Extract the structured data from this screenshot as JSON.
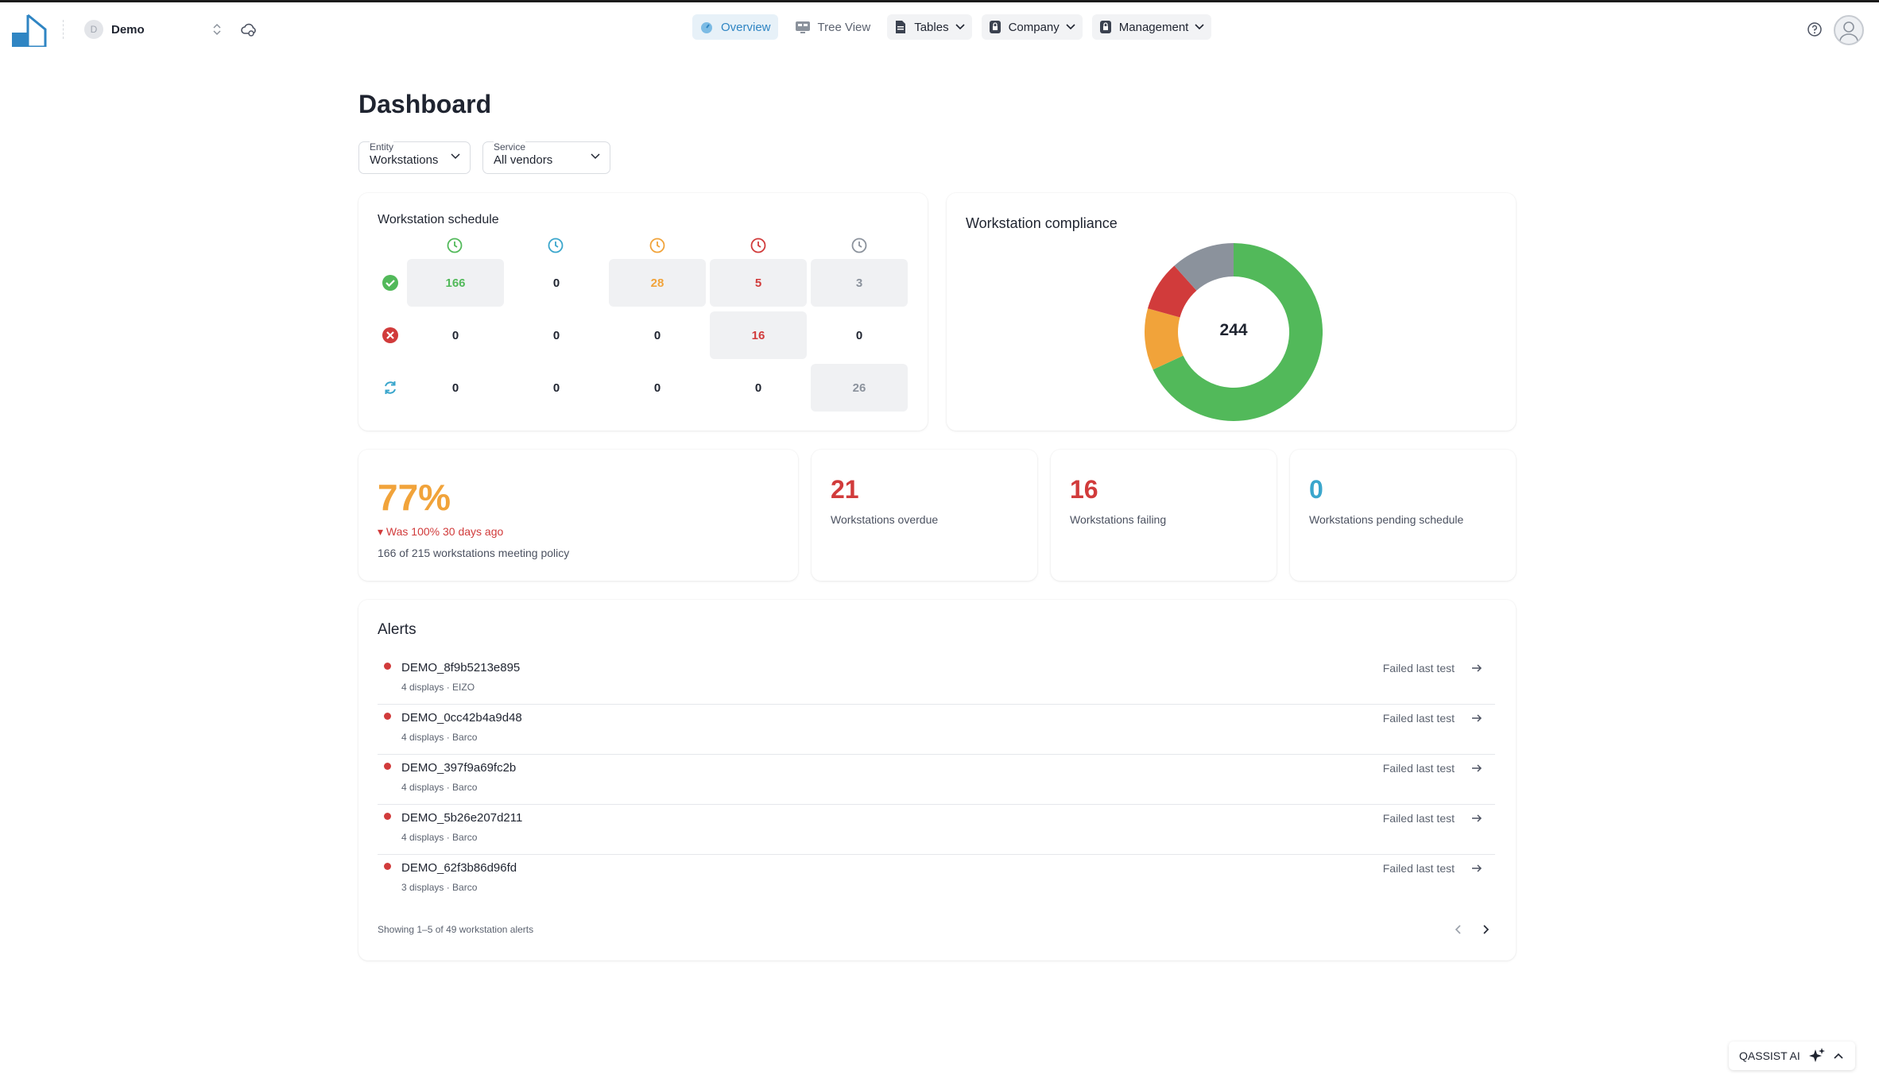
{
  "header": {
    "org_initial": "D",
    "org_name": "Demo",
    "nav": [
      {
        "label": "Overview"
      },
      {
        "label": "Tree View"
      },
      {
        "label": "Tables"
      },
      {
        "label": "Company"
      },
      {
        "label": "Management"
      }
    ]
  },
  "page": {
    "title": "Dashboard"
  },
  "filters": {
    "entity": {
      "label": "Entity",
      "value": "Workstations"
    },
    "service": {
      "label": "Service",
      "value": "All vendors"
    }
  },
  "schedule": {
    "title": "Workstation schedule",
    "column_icons": [
      "clock-green-icon",
      "clock-blue-icon",
      "clock-orange-icon",
      "clock-red-icon",
      "clock-gray-icon"
    ],
    "row_icons": [
      "check-circle-icon",
      "x-circle-icon",
      "refresh-icon"
    ],
    "rows": [
      [
        "166",
        "0",
        "28",
        "5",
        "3"
      ],
      [
        "0",
        "0",
        "0",
        "16",
        "0"
      ],
      [
        "0",
        "0",
        "0",
        "0",
        "26"
      ]
    ]
  },
  "compliance": {
    "title": "Workstation compliance",
    "total": "244",
    "colors": {
      "green": "#52b95a",
      "orange": "#f1a33a",
      "red": "#d13b3b",
      "gray": "#8b929c"
    }
  },
  "kpis": {
    "policy": {
      "percent": "77%",
      "change": "▾ Was 100% 30 days ago",
      "detail": "166 of 215 workstations meeting policy"
    },
    "overdue": {
      "value": "21",
      "label": "Workstations overdue"
    },
    "failing": {
      "value": "16",
      "label": "Workstations failing"
    },
    "pending": {
      "value": "0",
      "label": "Workstations pending schedule"
    }
  },
  "alerts": {
    "title": "Alerts",
    "items": [
      {
        "name": "DEMO_8f9b5213e895",
        "meta": "4 displays · EIZO",
        "status": "Failed last test"
      },
      {
        "name": "DEMO_0cc42b4a9d48",
        "meta": "4 displays · Barco",
        "status": "Failed last test"
      },
      {
        "name": "DEMO_397f9a69fc2b",
        "meta": "4 displays · Barco",
        "status": "Failed last test"
      },
      {
        "name": "DEMO_5b26e207d211",
        "meta": "4 displays · Barco",
        "status": "Failed last test"
      },
      {
        "name": "DEMO_62f3b86d96fd",
        "meta": "3 displays · Barco",
        "status": "Failed last test"
      }
    ],
    "footer": "Showing 1–5 of 49 workstation alerts"
  },
  "assistant": {
    "label": "QASSIST AI"
  }
}
